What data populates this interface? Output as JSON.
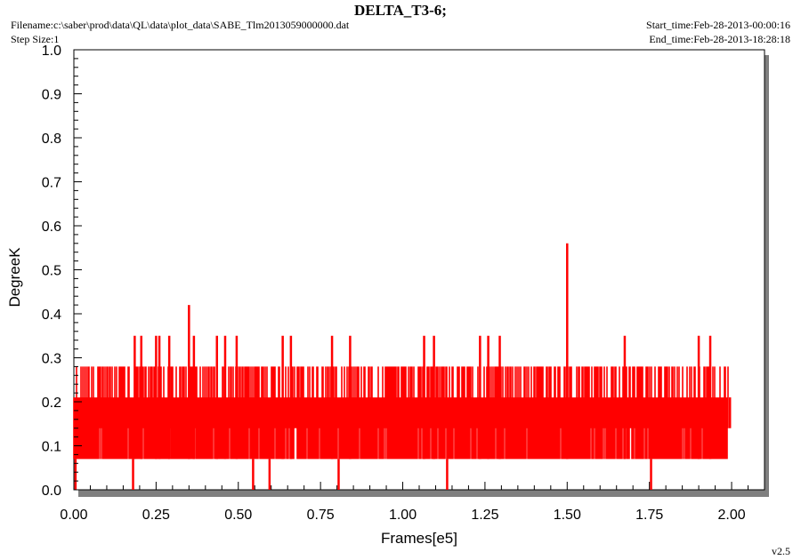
{
  "header": {
    "title": "DELTA_T3-6;",
    "filename": "Filename:c:\\saber\\prod\\data\\QL\\data\\plot_data\\SABE_Tlm2013059000000.dat",
    "step_size": "Step Size:1",
    "start_time": "Start_time:Feb-28-2013-00:00:16",
    "end_time": "End_time:Feb-28-2013-18:28:18"
  },
  "footer": {
    "version": "v2.5"
  },
  "colors": {
    "series": "#ff0000",
    "frame": "#000000",
    "shadow": "#7f7f7f"
  },
  "chart_data": {
    "type": "line",
    "title": "DELTA_T3-6;",
    "xlabel": "Frames[e5]",
    "ylabel": "DegreeK",
    "xlim": [
      0.0,
      2.1
    ],
    "ylim": [
      0.0,
      1.0
    ],
    "x_ticks": [
      "0.00",
      "0.25",
      "0.50",
      "0.75",
      "1.00",
      "1.25",
      "1.50",
      "1.75",
      "2.00"
    ],
    "y_ticks": [
      "0.0",
      "0.1",
      "0.2",
      "0.3",
      "0.4",
      "0.5",
      "0.6",
      "0.7",
      "0.8",
      "0.9",
      "1.0"
    ],
    "grid": false,
    "x_range_data": [
      0.0,
      1.99
    ],
    "quantized_levels": [
      0.0,
      0.07,
      0.14,
      0.21,
      0.28,
      0.35,
      0.42,
      0.56
    ],
    "band": {
      "dominant_min": 0.07,
      "dominant_max": 0.28,
      "typical_low": 0.07,
      "typical_high": 0.21
    },
    "spikes_high": [
      {
        "x": 0.185,
        "y": 0.35
      },
      {
        "x": 0.205,
        "y": 0.35
      },
      {
        "x": 0.25,
        "y": 0.35
      },
      {
        "x": 0.26,
        "y": 0.35
      },
      {
        "x": 0.29,
        "y": 0.35
      },
      {
        "x": 0.35,
        "y": 0.42
      },
      {
        "x": 0.365,
        "y": 0.35
      },
      {
        "x": 0.435,
        "y": 0.35
      },
      {
        "x": 0.46,
        "y": 0.35
      },
      {
        "x": 0.495,
        "y": 0.35
      },
      {
        "x": 0.635,
        "y": 0.35
      },
      {
        "x": 0.66,
        "y": 0.35
      },
      {
        "x": 0.785,
        "y": 0.35
      },
      {
        "x": 0.84,
        "y": 0.35
      },
      {
        "x": 1.065,
        "y": 0.35
      },
      {
        "x": 1.095,
        "y": 0.35
      },
      {
        "x": 1.235,
        "y": 0.35
      },
      {
        "x": 1.26,
        "y": 0.35
      },
      {
        "x": 1.295,
        "y": 0.35
      },
      {
        "x": 1.5,
        "y": 0.56
      },
      {
        "x": 1.675,
        "y": 0.35
      },
      {
        "x": 1.9,
        "y": 0.35
      },
      {
        "x": 1.935,
        "y": 0.35
      }
    ],
    "spikes_low": [
      {
        "x": 0.005,
        "y": 0.0
      },
      {
        "x": 0.18,
        "y": 0.0
      },
      {
        "x": 0.545,
        "y": 0.0
      },
      {
        "x": 0.595,
        "y": 0.0
      },
      {
        "x": 0.805,
        "y": 0.0
      },
      {
        "x": 1.135,
        "y": 0.0
      },
      {
        "x": 1.755,
        "y": 0.0
      }
    ]
  }
}
